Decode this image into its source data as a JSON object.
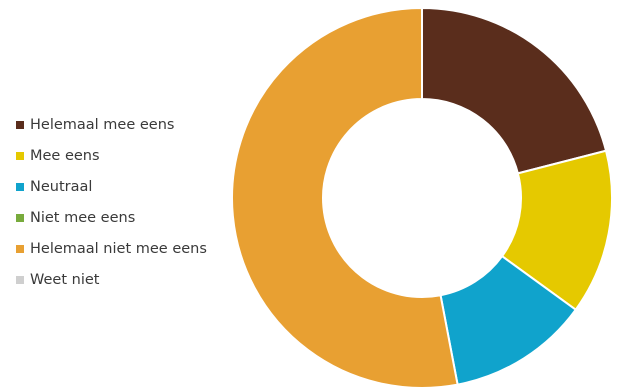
{
  "chart_data": {
    "type": "pie",
    "donut": true,
    "title": "",
    "legend_placement": "left",
    "categories": [
      "Helemaal mee eens",
      "Mee eens",
      "Neutraal",
      "Niet mee eens",
      "Helemaal niet mee eens",
      "Weet niet"
    ],
    "values": [
      21,
      14,
      12,
      0,
      53,
      0
    ],
    "colors": [
      "#5a2d1c",
      "#e5c900",
      "#10a3cc",
      "#78ab3c",
      "#e8a032",
      "#cfcfcf"
    ]
  }
}
